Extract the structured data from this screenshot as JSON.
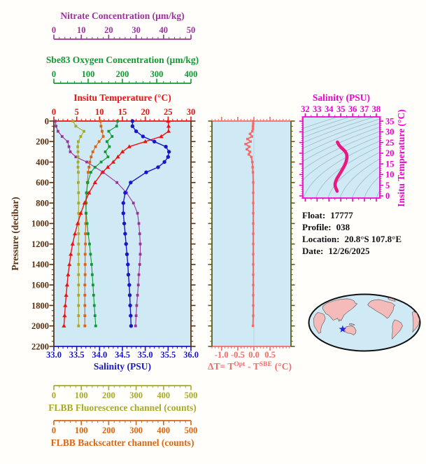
{
  "labels": {
    "nitrate_axis": "Nitrate Concentration (µm/kg)",
    "oxygen_axis": "Sbe83 Oxygen Concentration (µm/kg)",
    "temperature_axis": "Insitu Temperature (°C)",
    "pressure_axis": "Pressure (decibar)",
    "salinity_axis": "Salinity (PSU)",
    "fluorescence_axis": "FLBB Fluorescence channel (counts)",
    "backscatter_axis": "FLBB Backscatter channel (counts)",
    "ts_salinity_axis": "Salinity (PSU)",
    "ts_temperature_axis": "Insitu Temperature (°C)",
    "delta_t_axis_parts": {
      "p1": "ΔT= T",
      "sup1": "Opt",
      "p2": "- T",
      "sup2": "SBE",
      "p3": "(°C)"
    }
  },
  "float_info": {
    "lines": [
      {
        "label": "Float:",
        "value": "17777"
      },
      {
        "label": "Profile:",
        "value": "038"
      },
      {
        "label": "Location:",
        "value": "20.8°S  107.8°E"
      },
      {
        "label": "Date:",
        "value": "12/26/2025"
      }
    ],
    "lat": -20.8,
    "lon": 107.8
  },
  "colors": {
    "nitrate": "#993399",
    "oxygen": "#0f9933",
    "temperature": "#ee1111",
    "salinity": "#1616cc",
    "pressure": "#5a3010",
    "fluorescence": "#a8a82a",
    "backscatter": "#d96514",
    "delta_t": "#f46a6a",
    "delta_frame": "#5c5c14",
    "ts_curve": "#ee1199",
    "ts_curve_core": "#e03030",
    "ts_axis": "#ee00cc",
    "isopycnal": "#9fc0cb",
    "plot_bg": "#cfeaf4",
    "zero_line": "#b7d8e2",
    "land": "#f5baba",
    "land_outline": "#555555",
    "map_outline": "#111111",
    "star": "#2222dd",
    "info_text": "#111111"
  },
  "axes": {
    "nitrate": {
      "min": 0,
      "max": 50,
      "major": 10,
      "minor": 2,
      "labels": [
        "0",
        "10",
        "20",
        "30",
        "40",
        "50"
      ]
    },
    "oxygen": {
      "min": 0,
      "max": 400,
      "major": 100,
      "minor": 20,
      "labels": [
        "0",
        "100",
        "200",
        "300",
        "400"
      ]
    },
    "temperature": {
      "min": 0,
      "max": 30,
      "major": 5,
      "minor": 1,
      "labels": [
        "0",
        "5",
        "10",
        "15",
        "20",
        "25",
        "30"
      ]
    },
    "salinity": {
      "min": 33,
      "max": 36,
      "major": 0.5,
      "minor": 0.1,
      "labels": [
        "33.0",
        "33.5",
        "34.0",
        "34.5",
        "35.0",
        "35.5",
        "36.0"
      ]
    },
    "pressure": {
      "min": 0,
      "max": 2200,
      "major": 200,
      "minor": 50,
      "labels": [
        "0",
        "200",
        "400",
        "600",
        "800",
        "1000",
        "1200",
        "1400",
        "1600",
        "1800",
        "2000",
        "2200"
      ]
    },
    "fluorescence": {
      "min": 0,
      "max": 500,
      "major": 100,
      "minor": 20,
      "labels": [
        "0",
        "100",
        "200",
        "300",
        "400",
        "500"
      ]
    },
    "backscatter": {
      "min": 0,
      "max": 500,
      "major": 100,
      "minor": 20,
      "labels": [
        "0",
        "100",
        "200",
        "300",
        "400",
        "500"
      ]
    },
    "delta_t": {
      "min": -1.3,
      "max": 1.15,
      "major": 0.5,
      "minor": 0.1,
      "tick_values": [
        -1.0,
        -0.5,
        0.0,
        0.5
      ],
      "labels": [
        "-1.0",
        "-0.5",
        "0.0",
        "0.5"
      ]
    },
    "ts_salinity": {
      "min": 31.8,
      "max": 38.3,
      "major": 1,
      "minor": 0.5,
      "tick_values": [
        32,
        33,
        34,
        35,
        36,
        37,
        38
      ],
      "labels": [
        "32",
        "33",
        "34",
        "35",
        "36",
        "37",
        "38"
      ]
    },
    "ts_temperature": {
      "min": -1,
      "max": 37,
      "major": 5,
      "minor": 1,
      "tick_values": [
        0,
        5,
        10,
        15,
        20,
        25,
        30,
        35
      ],
      "labels": [
        "0",
        "5",
        "10",
        "15",
        "20",
        "25",
        "30",
        "35"
      ]
    }
  },
  "chart_data": [
    {
      "type": "line",
      "name": "depth-profiles",
      "y_axis_label": "Pressure (decibar)",
      "y_range": [
        0,
        2200
      ],
      "pressure_dbar": [
        0,
        50,
        100,
        150,
        200,
        250,
        300,
        350,
        400,
        450,
        500,
        600,
        700,
        800,
        900,
        1000,
        1100,
        1200,
        1300,
        1400,
        1500,
        1600,
        1700,
        1800,
        1900,
        2000
      ],
      "series": [
        {
          "name": "Nitrate Concentration",
          "units": "µm/kg",
          "axis": "nitrate",
          "marker": "square",
          "values": [
            0.5,
            0.8,
            1.5,
            3,
            5,
            5.5,
            6,
            8,
            12,
            15,
            18,
            23,
            26.5,
            29,
            30.5,
            31,
            31.3,
            31.5,
            31.5,
            31.3,
            31,
            30.8,
            30.5,
            30.2,
            30,
            29.8
          ]
        },
        {
          "name": "FLBB Fluorescence channel",
          "units": "counts",
          "axis": "fluorescence",
          "marker": "square",
          "values": [
            70,
            80,
            110,
            98,
            89,
            87,
            88,
            88,
            88,
            88,
            89,
            89,
            90,
            90,
            90,
            90,
            90,
            90,
            90,
            90,
            90,
            90,
            90,
            90,
            90,
            90
          ]
        },
        {
          "name": "FLBB Backscatter channel",
          "units": "counts",
          "axis": "backscatter",
          "marker": "square",
          "values": [
            170,
            172,
            176,
            180,
            165,
            152,
            142,
            136,
            131,
            128,
            125,
            122,
            120,
            118,
            117,
            116,
            115,
            115,
            114,
            114,
            114,
            113,
            113,
            113,
            113,
            113
          ]
        },
        {
          "name": "Sbe83 Oxygen Concentration",
          "units": "µm/kg",
          "axis": "oxygen",
          "marker": "square",
          "values": [
            186,
            183,
            160,
            170,
            155,
            162,
            150,
            158,
            138,
            120,
            108,
            99,
            95,
            93,
            94,
            97,
            100,
            104,
            107,
            110,
            112,
            114,
            116,
            118,
            120,
            122
          ]
        },
        {
          "name": "Insitu Temperature",
          "units": "°C",
          "axis": "temperature",
          "marker": "triangle",
          "values": [
            25,
            25.1,
            25.1,
            23.5,
            20,
            16.5,
            15,
            14,
            13,
            11.8,
            10.6,
            9,
            7.7,
            6.7,
            5.9,
            5.2,
            4.6,
            4.1,
            3.7,
            3.4,
            3.1,
            2.9,
            2.7,
            2.5,
            2.35,
            2.2
          ]
        },
        {
          "name": "Salinity",
          "units": "PSU",
          "axis": "salinity",
          "marker": "circle",
          "values": [
            34.72,
            34.72,
            34.8,
            34.95,
            35.2,
            35.45,
            35.52,
            35.5,
            35.42,
            35.28,
            35.02,
            34.68,
            34.56,
            34.52,
            34.52,
            34.54,
            34.56,
            34.58,
            34.6,
            34.62,
            34.63,
            34.65,
            34.66,
            34.67,
            34.68,
            34.69
          ]
        }
      ]
    },
    {
      "type": "line",
      "name": "temperature-difference-profile",
      "x_label": "ΔT= T^Opt - T^SBE (°C)",
      "x_range": [
        -1.3,
        1.15
      ],
      "pressure_dbar": [
        0,
        25,
        50,
        75,
        100,
        125,
        150,
        175,
        200,
        225,
        250,
        275,
        300,
        325,
        350,
        400,
        450,
        500,
        600,
        700,
        800,
        900,
        1000,
        1100,
        1200,
        1300,
        1400,
        1500,
        1600,
        1700,
        1800,
        1900,
        2000
      ],
      "delta_t_c": [
        -0.02,
        -0.02,
        -0.03,
        -0.03,
        -0.05,
        -0.12,
        -0.06,
        -0.2,
        -0.1,
        -0.26,
        -0.14,
        -0.22,
        -0.12,
        -0.16,
        -0.08,
        -0.05,
        -0.04,
        -0.03,
        -0.02,
        -0.02,
        -0.02,
        -0.02,
        -0.02,
        -0.02,
        -0.02,
        -0.02,
        -0.02,
        -0.02,
        -0.02,
        -0.02,
        -0.02,
        -0.02,
        -0.03
      ]
    },
    {
      "type": "line",
      "name": "ts-diagram",
      "x_label": "Salinity (PSU)",
      "y_label": "Insitu Temperature (°C)",
      "x_range": [
        31.8,
        38.3
      ],
      "y_range": [
        -1,
        37
      ],
      "salinity_psu": [
        34.72,
        34.75,
        34.85,
        35.0,
        35.2,
        35.38,
        35.5,
        35.52,
        35.45,
        35.3,
        35.1,
        34.9,
        34.72,
        34.6,
        34.53,
        34.52,
        34.55,
        34.6,
        34.64,
        34.67,
        34.69
      ],
      "temperature_c": [
        25.2,
        24.8,
        23.8,
        22.8,
        21.8,
        20.8,
        19.5,
        18.0,
        16.0,
        14.0,
        12.0,
        10.2,
        8.6,
        7.2,
        6.0,
        5.0,
        4.2,
        3.4,
        2.9,
        2.5,
        2.2
      ]
    }
  ]
}
